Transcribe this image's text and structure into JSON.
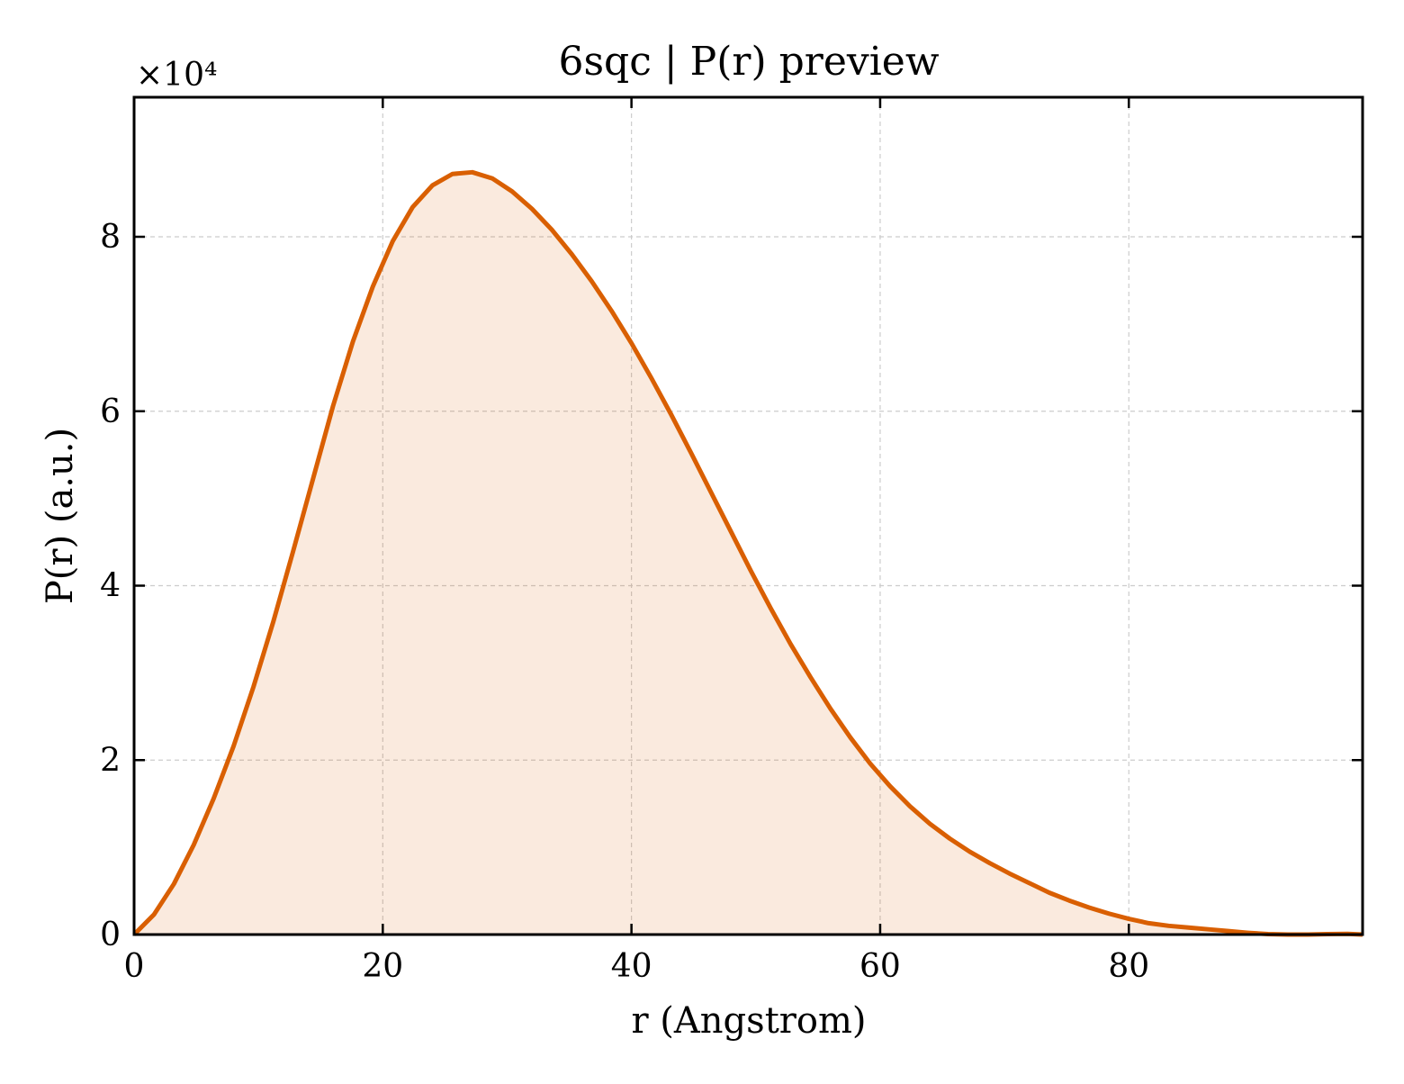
{
  "chart_data": {
    "type": "area",
    "title": "6sqc | P(r) preview",
    "xlabel": "r (Angstrom)",
    "ylabel": "P(r) (a.u.)",
    "y_multiplier": "×10⁴",
    "xlim": [
      0,
      98.8
    ],
    "ylim": [
      0,
      96000
    ],
    "x_ticks": [
      0,
      20,
      40,
      60,
      80
    ],
    "x_tick_labels": [
      "0",
      "20",
      "40",
      "60",
      "80"
    ],
    "y_ticks": [
      0,
      20000,
      40000,
      60000,
      80000
    ],
    "y_tick_labels": [
      "0",
      "2",
      "4",
      "6",
      "8"
    ],
    "grid": true,
    "legend": "none",
    "series": [
      {
        "color": "#d95f02",
        "fill_color": "#d95f02",
        "fill_opacity": 0.13,
        "x": [
          0,
          1.6,
          3.2,
          4.8,
          6.4,
          8,
          9.6,
          11.2,
          12.8,
          14.4,
          16,
          17.6,
          19.2,
          20.8,
          22.4,
          24,
          25.6,
          27.2,
          28.8,
          30.4,
          32,
          33.6,
          35.2,
          36.8,
          38.4,
          40,
          41.6,
          43.2,
          44.8,
          46.4,
          48,
          49.6,
          51.2,
          52.8,
          54.4,
          56,
          57.6,
          59.2,
          60.8,
          62.4,
          64,
          65.6,
          67.2,
          68.8,
          70.4,
          72,
          73.6,
          75.2,
          76.8,
          78.4,
          80,
          81.6,
          83.2,
          84.8,
          86.4,
          88,
          89.6,
          91.2,
          92.8,
          94.4,
          96,
          97.6,
          98.8
        ],
        "y": [
          0,
          2300,
          5800,
          10300,
          15600,
          21600,
          28400,
          35900,
          44000,
          52300,
          60600,
          68000,
          74300,
          79500,
          83400,
          85900,
          87200,
          87400,
          86700,
          85200,
          83200,
          80800,
          78000,
          74900,
          71500,
          67800,
          63800,
          59600,
          55200,
          50700,
          46200,
          41700,
          37400,
          33300,
          29500,
          25900,
          22600,
          19600,
          17000,
          14700,
          12700,
          11000,
          9500,
          8200,
          7000,
          5900,
          4800,
          3900,
          3100,
          2400,
          1800,
          1300,
          1000,
          800,
          600,
          400,
          200,
          50,
          0,
          0,
          50,
          80,
          0
        ]
      }
    ]
  }
}
